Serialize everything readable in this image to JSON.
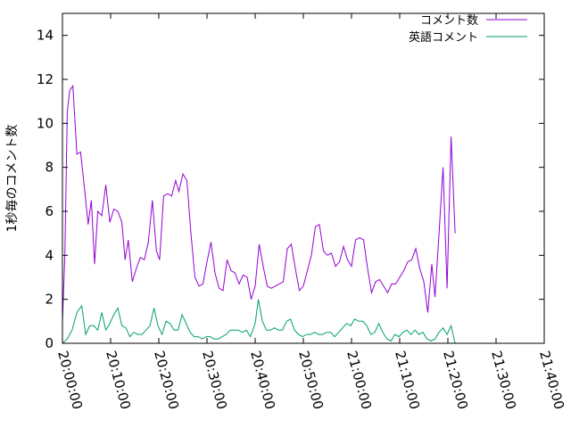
{
  "chart_data": {
    "type": "line",
    "ylabel": "1秒毎のコメント数",
    "ylim": [
      0,
      15
    ],
    "y_ticks": [
      "0",
      "2",
      "4",
      "6",
      "8",
      "10",
      "12",
      "14"
    ],
    "x_ticks": [
      "20:00:00",
      "20:10:00",
      "20:20:00",
      "20:30:00",
      "20:40:00",
      "20:50:00",
      "21:00:00",
      "21:10:00",
      "21:20:00",
      "21:30:00",
      "21:40:00"
    ],
    "xlim": [
      "20:00:00",
      "21:40:00"
    ],
    "grid": false,
    "legend_position": "top-right",
    "series": [
      {
        "name": "コメント数",
        "color": "#9400d3",
        "points": [
          [
            "20:00:00",
            1.0
          ],
          [
            "20:00:30",
            4.0
          ],
          [
            "20:01:00",
            10.5
          ],
          [
            "20:01:30",
            11.5
          ],
          [
            "20:02:10",
            11.7
          ],
          [
            "20:03:00",
            8.6
          ],
          [
            "20:03:45",
            8.7
          ],
          [
            "20:04:30",
            7.2
          ],
          [
            "20:05:20",
            5.4
          ],
          [
            "20:06:00",
            6.5
          ],
          [
            "20:06:40",
            3.6
          ],
          [
            "20:07:20",
            6.0
          ],
          [
            "20:08:10",
            5.8
          ],
          [
            "20:09:00",
            7.2
          ],
          [
            "20:09:50",
            5.5
          ],
          [
            "20:10:40",
            6.1
          ],
          [
            "20:11:30",
            6.0
          ],
          [
            "20:12:20",
            5.5
          ],
          [
            "20:13:00",
            3.8
          ],
          [
            "20:13:40",
            4.7
          ],
          [
            "20:14:30",
            2.8
          ],
          [
            "20:15:20",
            3.4
          ],
          [
            "20:16:10",
            3.9
          ],
          [
            "20:17:00",
            3.8
          ],
          [
            "20:17:50",
            4.6
          ],
          [
            "20:18:40",
            6.5
          ],
          [
            "20:19:30",
            4.2
          ],
          [
            "20:20:10",
            3.8
          ],
          [
            "20:21:00",
            6.7
          ],
          [
            "20:21:50",
            6.8
          ],
          [
            "20:22:40",
            6.7
          ],
          [
            "20:23:30",
            7.4
          ],
          [
            "20:24:10",
            6.9
          ],
          [
            "20:25:00",
            7.7
          ],
          [
            "20:25:50",
            7.4
          ],
          [
            "20:26:40",
            5.0
          ],
          [
            "20:27:30",
            3.0
          ],
          [
            "20:28:20",
            2.6
          ],
          [
            "20:29:10",
            2.7
          ],
          [
            "20:30:00",
            3.7
          ],
          [
            "20:30:50",
            4.6
          ],
          [
            "20:31:40",
            3.2
          ],
          [
            "20:32:30",
            2.5
          ],
          [
            "20:33:20",
            2.4
          ],
          [
            "20:34:10",
            3.8
          ],
          [
            "20:35:00",
            3.3
          ],
          [
            "20:35:50",
            3.2
          ],
          [
            "20:36:40",
            2.7
          ],
          [
            "20:37:30",
            3.1
          ],
          [
            "20:38:20",
            3.0
          ],
          [
            "20:39:10",
            2.0
          ],
          [
            "20:40:00",
            2.6
          ],
          [
            "20:40:50",
            4.5
          ],
          [
            "20:41:40",
            3.5
          ],
          [
            "20:42:30",
            2.6
          ],
          [
            "20:43:20",
            2.5
          ],
          [
            "20:44:10",
            2.6
          ],
          [
            "20:45:00",
            2.7
          ],
          [
            "20:45:50",
            2.8
          ],
          [
            "20:46:40",
            4.3
          ],
          [
            "20:47:30",
            4.5
          ],
          [
            "20:48:20",
            3.4
          ],
          [
            "20:49:10",
            2.4
          ],
          [
            "20:50:00",
            2.6
          ],
          [
            "20:50:50",
            3.3
          ],
          [
            "20:51:40",
            4.0
          ],
          [
            "20:52:30",
            5.3
          ],
          [
            "20:53:20",
            5.4
          ],
          [
            "20:54:10",
            4.2
          ],
          [
            "20:55:00",
            4.0
          ],
          [
            "20:55:50",
            4.1
          ],
          [
            "20:56:40",
            3.5
          ],
          [
            "20:57:30",
            3.7
          ],
          [
            "20:58:20",
            4.4
          ],
          [
            "20:59:10",
            3.8
          ],
          [
            "21:00:00",
            3.5
          ],
          [
            "21:00:50",
            4.7
          ],
          [
            "21:01:40",
            4.8
          ],
          [
            "21:02:30",
            4.7
          ],
          [
            "21:03:20",
            3.4
          ],
          [
            "21:04:10",
            2.3
          ],
          [
            "21:05:00",
            2.8
          ],
          [
            "21:05:50",
            2.9
          ],
          [
            "21:06:40",
            2.6
          ],
          [
            "21:07:30",
            2.3
          ],
          [
            "21:08:20",
            2.7
          ],
          [
            "21:09:10",
            2.7
          ],
          [
            "21:10:00",
            3.0
          ],
          [
            "21:10:50",
            3.3
          ],
          [
            "21:11:40",
            3.7
          ],
          [
            "21:12:30",
            3.8
          ],
          [
            "21:13:20",
            4.3
          ],
          [
            "21:14:10",
            3.4
          ],
          [
            "21:15:00",
            2.8
          ],
          [
            "21:15:50",
            1.4
          ],
          [
            "21:16:40",
            3.6
          ],
          [
            "21:17:20",
            2.1
          ],
          [
            "21:18:10",
            5.0
          ],
          [
            "21:19:00",
            8.0
          ],
          [
            "21:19:50",
            2.5
          ],
          [
            "21:20:40",
            9.4
          ],
          [
            "21:21:30",
            5.0
          ]
        ]
      },
      {
        "name": "英語コメント",
        "color": "#009e73",
        "points": [
          [
            "20:00:00",
            0.0
          ],
          [
            "20:01:00",
            0.2
          ],
          [
            "20:02:00",
            0.6
          ],
          [
            "20:03:00",
            1.4
          ],
          [
            "20:04:00",
            1.7
          ],
          [
            "20:04:50",
            0.4
          ],
          [
            "20:05:40",
            0.8
          ],
          [
            "20:06:30",
            0.8
          ],
          [
            "20:07:20",
            0.6
          ],
          [
            "20:08:10",
            1.4
          ],
          [
            "20:09:00",
            0.6
          ],
          [
            "20:09:50",
            0.9
          ],
          [
            "20:10:40",
            1.3
          ],
          [
            "20:11:30",
            1.6
          ],
          [
            "20:12:20",
            0.8
          ],
          [
            "20:13:10",
            0.7
          ],
          [
            "20:14:00",
            0.3
          ],
          [
            "20:14:50",
            0.5
          ],
          [
            "20:15:40",
            0.4
          ],
          [
            "20:16:30",
            0.4
          ],
          [
            "20:17:20",
            0.6
          ],
          [
            "20:18:10",
            0.8
          ],
          [
            "20:19:00",
            1.6
          ],
          [
            "20:19:50",
            0.8
          ],
          [
            "20:20:40",
            0.4
          ],
          [
            "20:21:30",
            1.0
          ],
          [
            "20:22:20",
            0.9
          ],
          [
            "20:23:10",
            0.6
          ],
          [
            "20:24:00",
            0.6
          ],
          [
            "20:24:50",
            1.3
          ],
          [
            "20:25:40",
            0.9
          ],
          [
            "20:26:30",
            0.5
          ],
          [
            "20:27:20",
            0.3
          ],
          [
            "20:28:10",
            0.3
          ],
          [
            "20:29:00",
            0.2
          ],
          [
            "20:29:50",
            0.3
          ],
          [
            "20:30:40",
            0.3
          ],
          [
            "20:31:30",
            0.2
          ],
          [
            "20:32:20",
            0.2
          ],
          [
            "20:33:10",
            0.3
          ],
          [
            "20:34:00",
            0.4
          ],
          [
            "20:34:50",
            0.6
          ],
          [
            "20:35:40",
            0.6
          ],
          [
            "20:36:30",
            0.6
          ],
          [
            "20:37:20",
            0.5
          ],
          [
            "20:38:10",
            0.6
          ],
          [
            "20:39:00",
            0.3
          ],
          [
            "20:40:00",
            0.9
          ],
          [
            "20:40:40",
            2.0
          ],
          [
            "20:41:30",
            1.0
          ],
          [
            "20:42:20",
            0.6
          ],
          [
            "20:43:10",
            0.6
          ],
          [
            "20:44:00",
            0.7
          ],
          [
            "20:44:50",
            0.6
          ],
          [
            "20:45:40",
            0.6
          ],
          [
            "20:46:30",
            1.0
          ],
          [
            "20:47:20",
            1.1
          ],
          [
            "20:48:10",
            0.6
          ],
          [
            "20:49:00",
            0.4
          ],
          [
            "20:49:50",
            0.3
          ],
          [
            "20:50:40",
            0.4
          ],
          [
            "20:51:30",
            0.4
          ],
          [
            "20:52:20",
            0.5
          ],
          [
            "20:53:10",
            0.4
          ],
          [
            "20:54:00",
            0.4
          ],
          [
            "20:54:50",
            0.5
          ],
          [
            "20:55:40",
            0.5
          ],
          [
            "20:56:30",
            0.3
          ],
          [
            "20:57:20",
            0.5
          ],
          [
            "20:58:10",
            0.7
          ],
          [
            "20:59:00",
            0.9
          ],
          [
            "20:59:50",
            0.8
          ],
          [
            "21:00:40",
            1.1
          ],
          [
            "21:01:30",
            1.0
          ],
          [
            "21:02:20",
            1.0
          ],
          [
            "21:03:10",
            0.8
          ],
          [
            "21:04:00",
            0.4
          ],
          [
            "21:04:50",
            0.5
          ],
          [
            "21:05:40",
            0.9
          ],
          [
            "21:06:30",
            0.5
          ],
          [
            "21:07:20",
            0.2
          ],
          [
            "21:08:10",
            0.1
          ],
          [
            "21:09:00",
            0.4
          ],
          [
            "21:09:50",
            0.3
          ],
          [
            "21:10:40",
            0.5
          ],
          [
            "21:11:30",
            0.6
          ],
          [
            "21:12:20",
            0.4
          ],
          [
            "21:13:10",
            0.6
          ],
          [
            "21:14:00",
            0.4
          ],
          [
            "21:14:50",
            0.5
          ],
          [
            "21:15:40",
            0.2
          ],
          [
            "21:16:30",
            0.1
          ],
          [
            "21:17:20",
            0.2
          ],
          [
            "21:18:10",
            0.5
          ],
          [
            "21:19:00",
            0.7
          ],
          [
            "21:19:50",
            0.4
          ],
          [
            "21:20:40",
            0.8
          ],
          [
            "21:21:30",
            0.0
          ]
        ]
      }
    ]
  }
}
